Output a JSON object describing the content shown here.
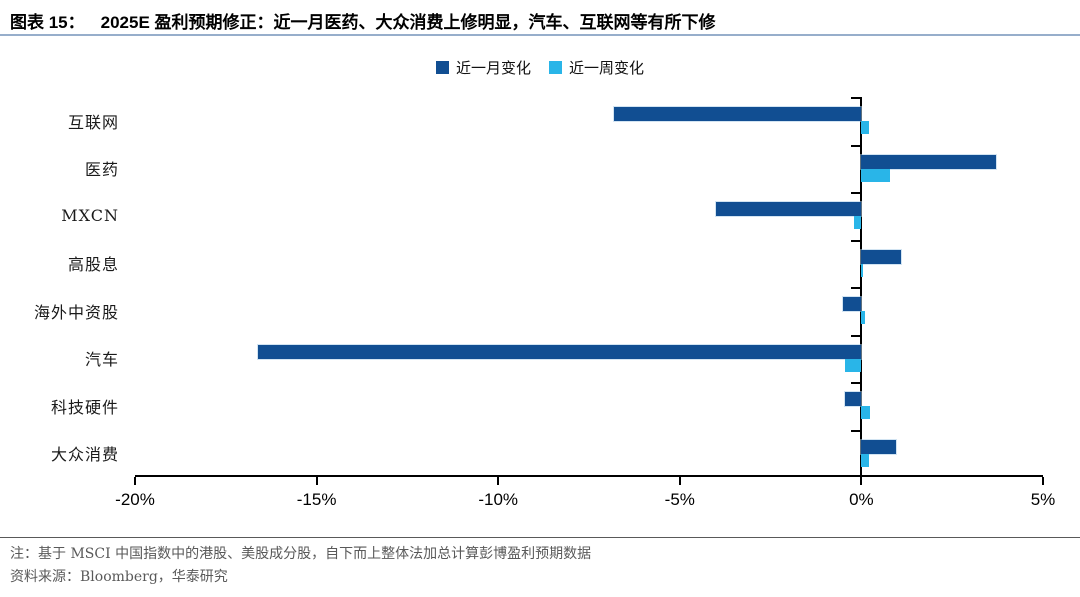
{
  "header": {
    "figure_label": "图表 15：",
    "title": "2025E 盈利预期修正：近一月医药、大众消费上修明显，汽车、互联网等有所下修"
  },
  "legend": [
    {
      "label": "近一月变化",
      "color": "#114e92"
    },
    {
      "label": "近一周变化",
      "color": "#29b5e8"
    }
  ],
  "chart_data": {
    "type": "bar",
    "orientation": "horizontal",
    "title": "2025E 盈利预期修正",
    "categories": [
      "互联网",
      "医药",
      "MXCN",
      "高股息",
      "海外中资股",
      "汽车",
      "科技硬件",
      "大众消费"
    ],
    "series": [
      {
        "name": "近一月变化",
        "color": "#114e92",
        "values": [
          -6.8,
          3.7,
          -4.0,
          1.1,
          -0.5,
          -16.6,
          -0.45,
          0.95
        ]
      },
      {
        "name": "近一周变化",
        "color": "#29b5e8",
        "values": [
          0.2,
          0.8,
          -0.2,
          0.05,
          0.1,
          -0.45,
          0.25,
          0.2
        ]
      }
    ],
    "unit": "%",
    "xlim": [
      -20,
      5
    ],
    "x_ticks": [
      -20,
      -15,
      -10,
      -5,
      0,
      5
    ],
    "x_tick_labels": [
      "-20%",
      "-15%",
      "-10%",
      "-5%",
      "0%",
      "5%"
    ],
    "grid": "off",
    "legend_position": "top-center",
    "zero_line": true
  },
  "footer": {
    "note": "注：基于 MSCI 中国指数中的港股、美股成分股，自下而上整体法加总计算彭博盈利预期数据",
    "source": "资料来源：Bloomberg，华泰研究"
  }
}
